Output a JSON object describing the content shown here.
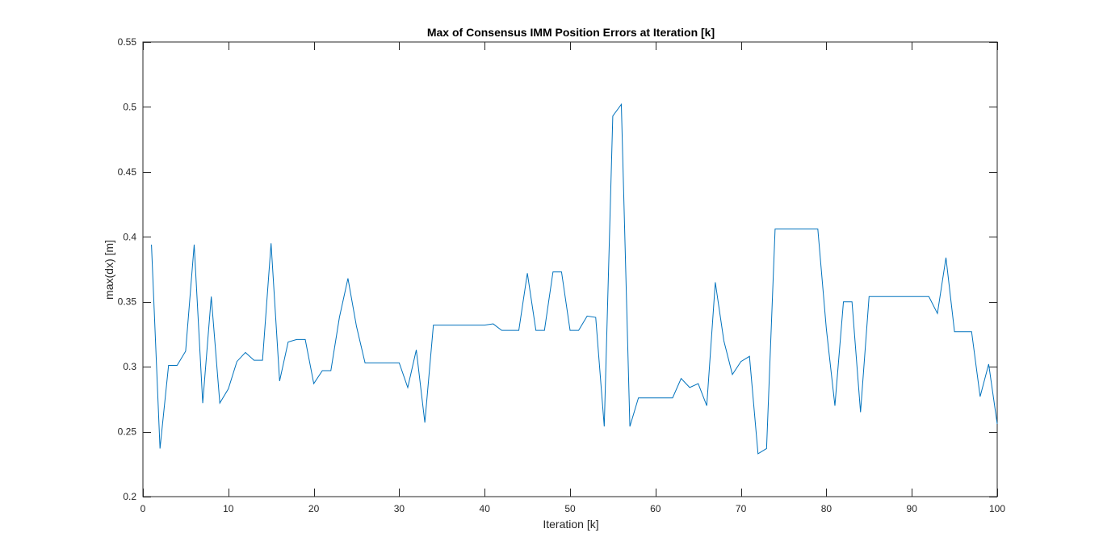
{
  "chart_data": {
    "type": "line",
    "title": "Max of Consensus IMM Position Errors at Iteration [k]",
    "xlabel": "Iteration [k]",
    "ylabel": "max(dx) [m]",
    "xlim": [
      0,
      100
    ],
    "ylim": [
      0.2,
      0.55
    ],
    "xticks": [
      0,
      10,
      20,
      30,
      40,
      50,
      60,
      70,
      80,
      90,
      100
    ],
    "yticks": [
      0.2,
      0.25,
      0.3,
      0.35,
      0.4,
      0.45,
      0.5,
      0.55
    ],
    "xtick_labels": [
      "0",
      "10",
      "20",
      "30",
      "40",
      "50",
      "60",
      "70",
      "80",
      "90",
      "100"
    ],
    "ytick_labels": [
      "0.2",
      "0.25",
      "0.3",
      "0.35",
      "0.4",
      "0.45",
      "0.5",
      "0.55"
    ],
    "grid": false,
    "colors": {
      "line": "#0072BD",
      "axes": "#262626"
    },
    "x": [
      1,
      2,
      3,
      4,
      5,
      6,
      7,
      8,
      9,
      10,
      11,
      12,
      13,
      14,
      15,
      16,
      17,
      18,
      19,
      20,
      21,
      22,
      23,
      24,
      25,
      26,
      27,
      28,
      29,
      30,
      31,
      32,
      33,
      34,
      35,
      36,
      37,
      38,
      39,
      40,
      41,
      42,
      43,
      44,
      45,
      46,
      47,
      48,
      49,
      50,
      51,
      52,
      53,
      54,
      55,
      56,
      57,
      58,
      59,
      60,
      61,
      62,
      63,
      64,
      65,
      66,
      67,
      68,
      69,
      70,
      71,
      72,
      73,
      74,
      75,
      76,
      77,
      78,
      79,
      80,
      81,
      82,
      83,
      84,
      85,
      86,
      87,
      88,
      89,
      90,
      91,
      92,
      93,
      94,
      95,
      96,
      97,
      98,
      99,
      100
    ],
    "series": [
      {
        "values": [
          0.394,
          0.237,
          0.301,
          0.301,
          0.312,
          0.394,
          0.272,
          0.354,
          0.272,
          0.283,
          0.304,
          0.311,
          0.305,
          0.305,
          0.395,
          0.289,
          0.319,
          0.321,
          0.321,
          0.287,
          0.297,
          0.297,
          0.338,
          0.368,
          0.331,
          0.303,
          0.303,
          0.303,
          0.303,
          0.303,
          0.284,
          0.313,
          0.257,
          0.332,
          0.332,
          0.332,
          0.332,
          0.332,
          0.332,
          0.332,
          0.333,
          0.328,
          0.328,
          0.328,
          0.372,
          0.328,
          0.328,
          0.373,
          0.373,
          0.328,
          0.328,
          0.339,
          0.338,
          0.254,
          0.493,
          0.502,
          0.254,
          0.276,
          0.276,
          0.276,
          0.276,
          0.276,
          0.291,
          0.284,
          0.287,
          0.27,
          0.365,
          0.32,
          0.294,
          0.304,
          0.308,
          0.233,
          0.237,
          0.406,
          0.406,
          0.406,
          0.406,
          0.406,
          0.406,
          0.329,
          0.27,
          0.35,
          0.35,
          0.265,
          0.354,
          0.354,
          0.354,
          0.354,
          0.354,
          0.354,
          0.354,
          0.354,
          0.341,
          0.384,
          0.327,
          0.327,
          0.327,
          0.277,
          0.302,
          0.256
        ]
      }
    ]
  }
}
